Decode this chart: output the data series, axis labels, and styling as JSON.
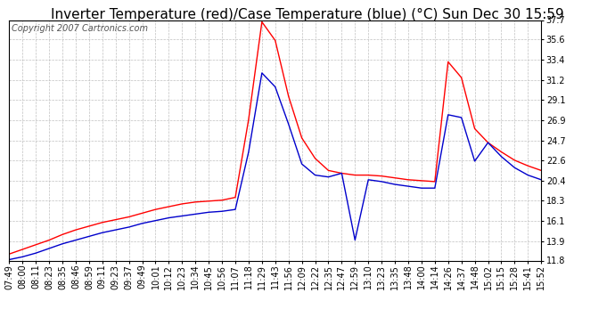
{
  "title": "Inverter Temperature (red)/Case Temperature (blue) (°C) Sun Dec 30 15:59",
  "copyright": "Copyright 2007 Cartronics.com",
  "yticks": [
    11.8,
    13.9,
    16.1,
    18.3,
    20.4,
    22.6,
    24.7,
    26.9,
    29.1,
    31.2,
    33.4,
    35.6,
    37.7
  ],
  "xtick_labels": [
    "07:49",
    "08:00",
    "08:11",
    "08:23",
    "08:35",
    "08:46",
    "08:59",
    "09:11",
    "09:23",
    "09:37",
    "09:49",
    "10:01",
    "10:12",
    "10:23",
    "10:34",
    "10:45",
    "10:56",
    "11:07",
    "11:18",
    "11:29",
    "11:43",
    "11:56",
    "12:09",
    "12:22",
    "12:35",
    "12:47",
    "12:59",
    "13:10",
    "13:23",
    "13:35",
    "13:48",
    "14:00",
    "14:14",
    "14:26",
    "14:37",
    "14:48",
    "15:02",
    "15:15",
    "15:28",
    "15:41",
    "15:52"
  ],
  "red_y": [
    12.5,
    13.0,
    13.5,
    14.0,
    14.6,
    15.1,
    15.5,
    15.9,
    16.2,
    16.5,
    16.9,
    17.3,
    17.6,
    17.9,
    18.1,
    18.2,
    18.3,
    18.6,
    27.0,
    37.5,
    35.5,
    29.5,
    25.0,
    22.8,
    21.5,
    21.2,
    21.0,
    21.0,
    20.9,
    20.7,
    20.5,
    20.4,
    20.3,
    33.2,
    31.5,
    26.0,
    24.5,
    23.5,
    22.6,
    22.0,
    21.5
  ],
  "blue_y": [
    11.9,
    12.2,
    12.6,
    13.1,
    13.6,
    14.0,
    14.4,
    14.8,
    15.1,
    15.4,
    15.8,
    16.1,
    16.4,
    16.6,
    16.8,
    17.0,
    17.1,
    17.3,
    23.5,
    32.0,
    30.5,
    26.5,
    22.2,
    21.0,
    20.8,
    21.2,
    14.0,
    20.5,
    20.3,
    20.0,
    19.8,
    19.6,
    19.6,
    27.5,
    27.2,
    22.5,
    24.5,
    23.0,
    21.8,
    21.0,
    20.5
  ],
  "background_color": "#ffffff",
  "plot_bg_color": "#ffffff",
  "grid_color": "#c0c0c0",
  "red_color": "#ff0000",
  "blue_color": "#0000cc",
  "title_fontsize": 11,
  "copyright_fontsize": 7,
  "tick_fontsize": 7,
  "line_width": 1.0
}
